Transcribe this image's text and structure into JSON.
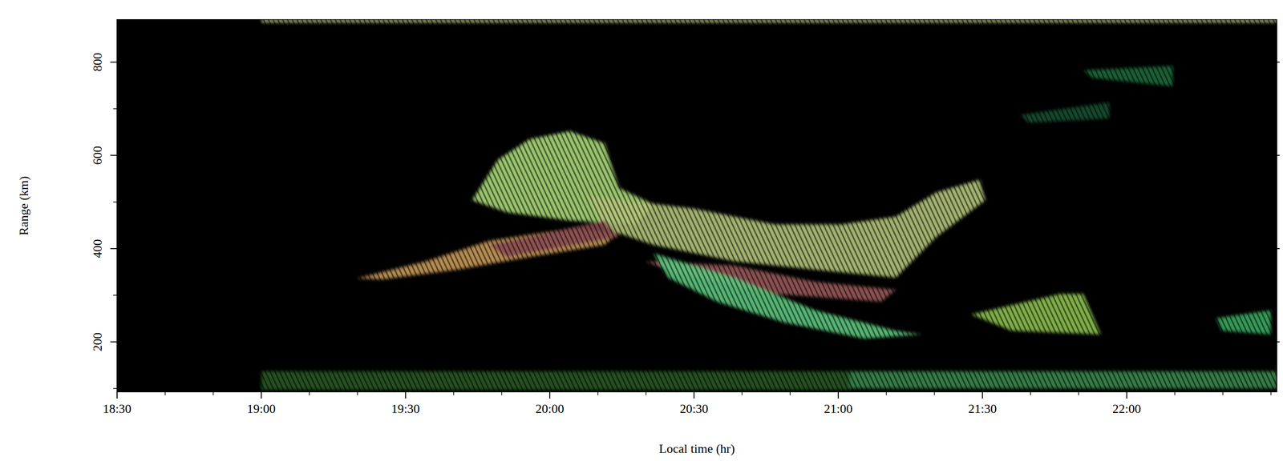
{
  "chart_data": {
    "type": "heatmap",
    "x_label": "Local time (hr)",
    "y_label": "Range (km)",
    "xlim": [
      18.5,
      22.52
    ],
    "ylim": [
      93,
      891
    ],
    "xticks": [
      {
        "value": 18.5,
        "label": "18:30"
      },
      {
        "value": 19.0,
        "label": "19:00"
      },
      {
        "value": 19.5,
        "label": "19:30"
      },
      {
        "value": 20.0,
        "label": "20:00"
      },
      {
        "value": 20.5,
        "label": "20:30"
      },
      {
        "value": 21.0,
        "label": "21:00"
      },
      {
        "value": 21.5,
        "label": "21:30"
      },
      {
        "value": 22.0,
        "label": "22:00"
      }
    ],
    "yticks": [
      200,
      400,
      600,
      800
    ],
    "echoes": [
      {
        "color": "#d4dc8c",
        "x": [
          19.0,
          22.52,
          22.52,
          19.0
        ],
        "y": [
          885,
          885,
          891,
          891
        ]
      },
      {
        "color": "#2a5a22",
        "x": [
          19.0,
          21.04,
          21.04,
          19.0
        ],
        "y": [
          97,
          97,
          137,
          137
        ]
      },
      {
        "color": "#3c8a50",
        "x": [
          21.04,
          22.52,
          22.52,
          21.04
        ],
        "y": [
          100,
          100,
          137,
          137
        ]
      },
      {
        "color": "#c89a5a",
        "x": [
          19.33,
          19.57,
          19.79,
          20.07,
          20.24,
          20.19,
          19.93,
          19.68,
          19.42
        ],
        "y": [
          336,
          373,
          417,
          443,
          434,
          408,
          382,
          355,
          334
        ]
      },
      {
        "color": "#a8d878",
        "x": [
          19.73,
          19.82,
          19.93,
          20.07,
          20.19,
          20.24,
          20.36,
          20.3,
          20.07,
          19.85
        ],
        "y": [
          504,
          591,
          635,
          652,
          626,
          530,
          495,
          452,
          460,
          478
        ]
      },
      {
        "color": "#b4c47a",
        "x": [
          20.13,
          20.5,
          20.78,
          21.01,
          21.2,
          21.34,
          21.49,
          21.51,
          21.34,
          21.2,
          20.92,
          20.64,
          20.36,
          20.19
        ],
        "y": [
          513,
          486,
          452,
          452,
          469,
          521,
          548,
          504,
          425,
          338,
          355,
          373,
          408,
          443
        ]
      },
      {
        "color": "#9a5a5a",
        "x": [
          20.33,
          20.64,
          20.92,
          21.2,
          21.15,
          20.78,
          20.44
        ],
        "y": [
          373,
          364,
          329,
          312,
          286,
          303,
          347
        ]
      },
      {
        "color": "#8a4a50",
        "x": [
          19.79,
          20.19,
          20.24,
          19.85
        ],
        "y": [
          408,
          460,
          425,
          382
        ]
      },
      {
        "color": "#5cc880",
        "x": [
          20.36,
          20.64,
          20.92,
          21.2,
          21.29,
          21.09,
          20.81,
          20.58,
          20.41
        ],
        "y": [
          390,
          338,
          268,
          224,
          216,
          207,
          242,
          286,
          338
        ]
      },
      {
        "color": "#8cc050",
        "x": [
          21.46,
          21.77,
          21.85,
          21.91,
          21.6
        ],
        "y": [
          259,
          303,
          303,
          216,
          224
        ]
      },
      {
        "color": "#3ca860",
        "x": [
          22.31,
          22.5,
          22.5,
          22.33
        ],
        "y": [
          251,
          268,
          216,
          224
        ]
      },
      {
        "color": "#1e6a3a",
        "x": [
          21.85,
          22.16,
          22.16,
          21.88
        ],
        "y": [
          783,
          792,
          748,
          766
        ]
      },
      {
        "color": "#1a5030",
        "x": [
          21.63,
          21.94,
          21.94,
          21.66
        ],
        "y": [
          687,
          714,
          679,
          670
        ]
      }
    ]
  }
}
